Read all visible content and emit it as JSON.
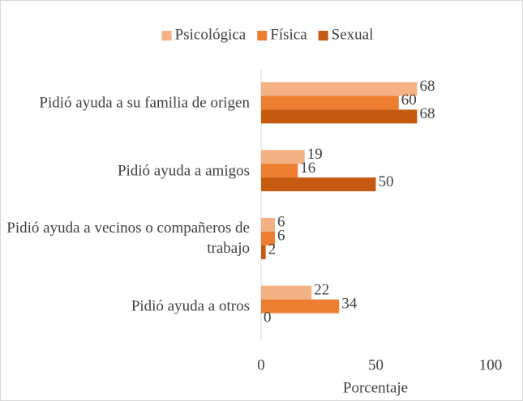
{
  "chart_data": {
    "type": "bar",
    "orientation": "horizontal",
    "categories": [
      "Pidió ayuda a su familia de origen",
      "Pidió ayuda a amigos",
      "Pidió ayuda a vecinos o compañeros de trabajo",
      "Pidió ayuda a otros"
    ],
    "series": [
      {
        "name": "Psicológica",
        "color": "#f4b183",
        "values": [
          68,
          19,
          6,
          22
        ]
      },
      {
        "name": "Física",
        "color": "#ed7d31",
        "values": [
          60,
          16,
          6,
          34
        ]
      },
      {
        "name": "Sexual",
        "color": "#c55a11",
        "values": [
          68,
          50,
          2,
          0
        ]
      }
    ],
    "x_label": "Porcentaje",
    "xlim": [
      0,
      100
    ],
    "xticks": [
      0,
      50,
      100
    ],
    "grid": false,
    "legend": "top"
  }
}
